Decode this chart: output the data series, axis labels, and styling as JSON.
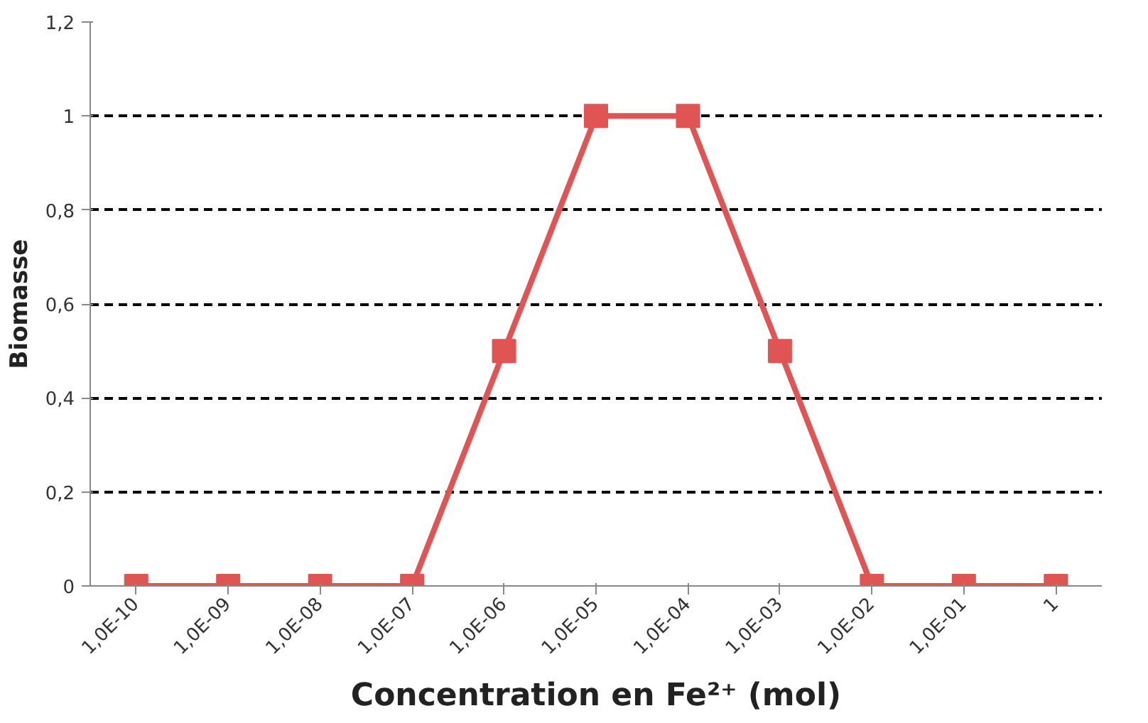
{
  "chart_data": {
    "type": "line",
    "xlabel": "Concentration en Fe²⁺ (mol)",
    "ylabel": "Biomasse",
    "categories": [
      "1,0E-10",
      "1,0E-09",
      "1,0E-08",
      "1,0E-07",
      "1,0E-06",
      "1,0E-05",
      "1,0E-04",
      "1,0E-03",
      "1,0E-02",
      "1,0E-01",
      "1"
    ],
    "series": [
      {
        "color": "#e05454",
        "values": [
          0,
          0,
          0,
          0,
          0.5,
          1,
          1,
          0.5,
          0,
          0,
          0
        ]
      }
    ],
    "ylim": [
      0,
      1.2
    ],
    "yticks": [
      0,
      {
        "value": 0.2,
        "label": "0,2"
      },
      {
        "value": 0.4,
        "label": "0,4"
      },
      {
        "value": 0.6,
        "label": "0,6"
      },
      {
        "value": 0.8,
        "label": "0,8"
      },
      1,
      {
        "value": 1.2,
        "label": "1,2"
      }
    ],
    "grid": "y",
    "marker": "square",
    "line_style": "solid"
  }
}
